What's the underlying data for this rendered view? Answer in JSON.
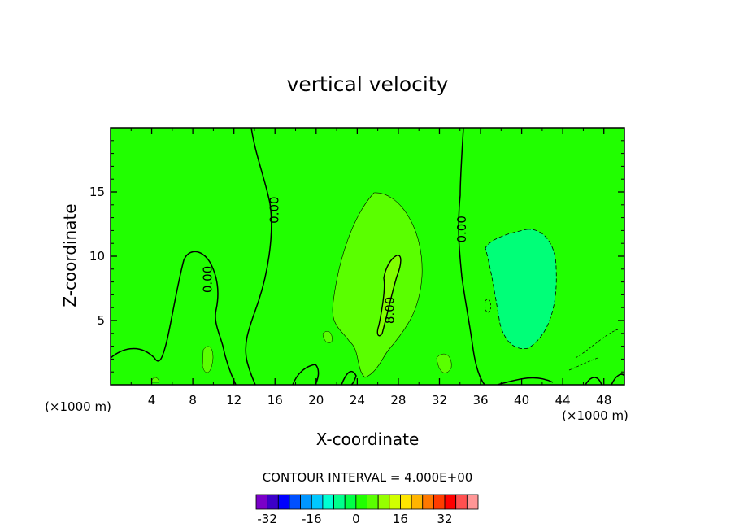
{
  "chart_data": {
    "type": "contour",
    "title": "vertical velocity",
    "xlabel": "X-coordinate",
    "ylabel": "Z-coordinate",
    "x_unit_left": "(×1000 m)",
    "x_unit_right": "(×1000 m)",
    "xlim": [
      0,
      50
    ],
    "ylim": [
      0,
      20
    ],
    "xticks": [
      4,
      8,
      12,
      16,
      20,
      24,
      28,
      32,
      36,
      40,
      44,
      48
    ],
    "yticks": [
      5,
      10,
      15
    ],
    "contour_interval_text": "CONTOUR INTERVAL = 4.000E+00",
    "contour_labels": [
      {
        "text": "0.00",
        "x": 16,
        "z": 13.6
      },
      {
        "text": "0.00",
        "x": 9.5,
        "z": 8.2
      },
      {
        "text": "0.00",
        "x": 34.2,
        "z": 12.1
      },
      {
        "text": "8.00",
        "x": 27.2,
        "z": 5.8
      }
    ],
    "regions": [
      {
        "level": 0,
        "color": "#21ff00",
        "description": "background zero field"
      },
      {
        "level": 4,
        "color": "#5aff00",
        "description": "updraft 4–8"
      },
      {
        "level": 8,
        "color": "#82ff00",
        "description": "core above 8"
      },
      {
        "level": -4,
        "color": "#00ff78",
        "description": "downdraft near x=40"
      }
    ],
    "colorbar": {
      "tick_labels": [
        "-32",
        "-16",
        "0",
        "16",
        "32"
      ],
      "tick_values": [
        -32,
        -16,
        0,
        16,
        32
      ],
      "levels_min": -36,
      "levels_step": 4,
      "colors": [
        "#7a00c8",
        "#3c00c8",
        "#0000ff",
        "#0050ff",
        "#0096ff",
        "#00c8ff",
        "#00ffd2",
        "#00ff8c",
        "#00ff46",
        "#21ff00",
        "#5aff00",
        "#96ff00",
        "#d2ff00",
        "#ffe600",
        "#ffb400",
        "#ff7800",
        "#ff3c00",
        "#ff0000",
        "#ff5050",
        "#ff9696"
      ]
    }
  }
}
